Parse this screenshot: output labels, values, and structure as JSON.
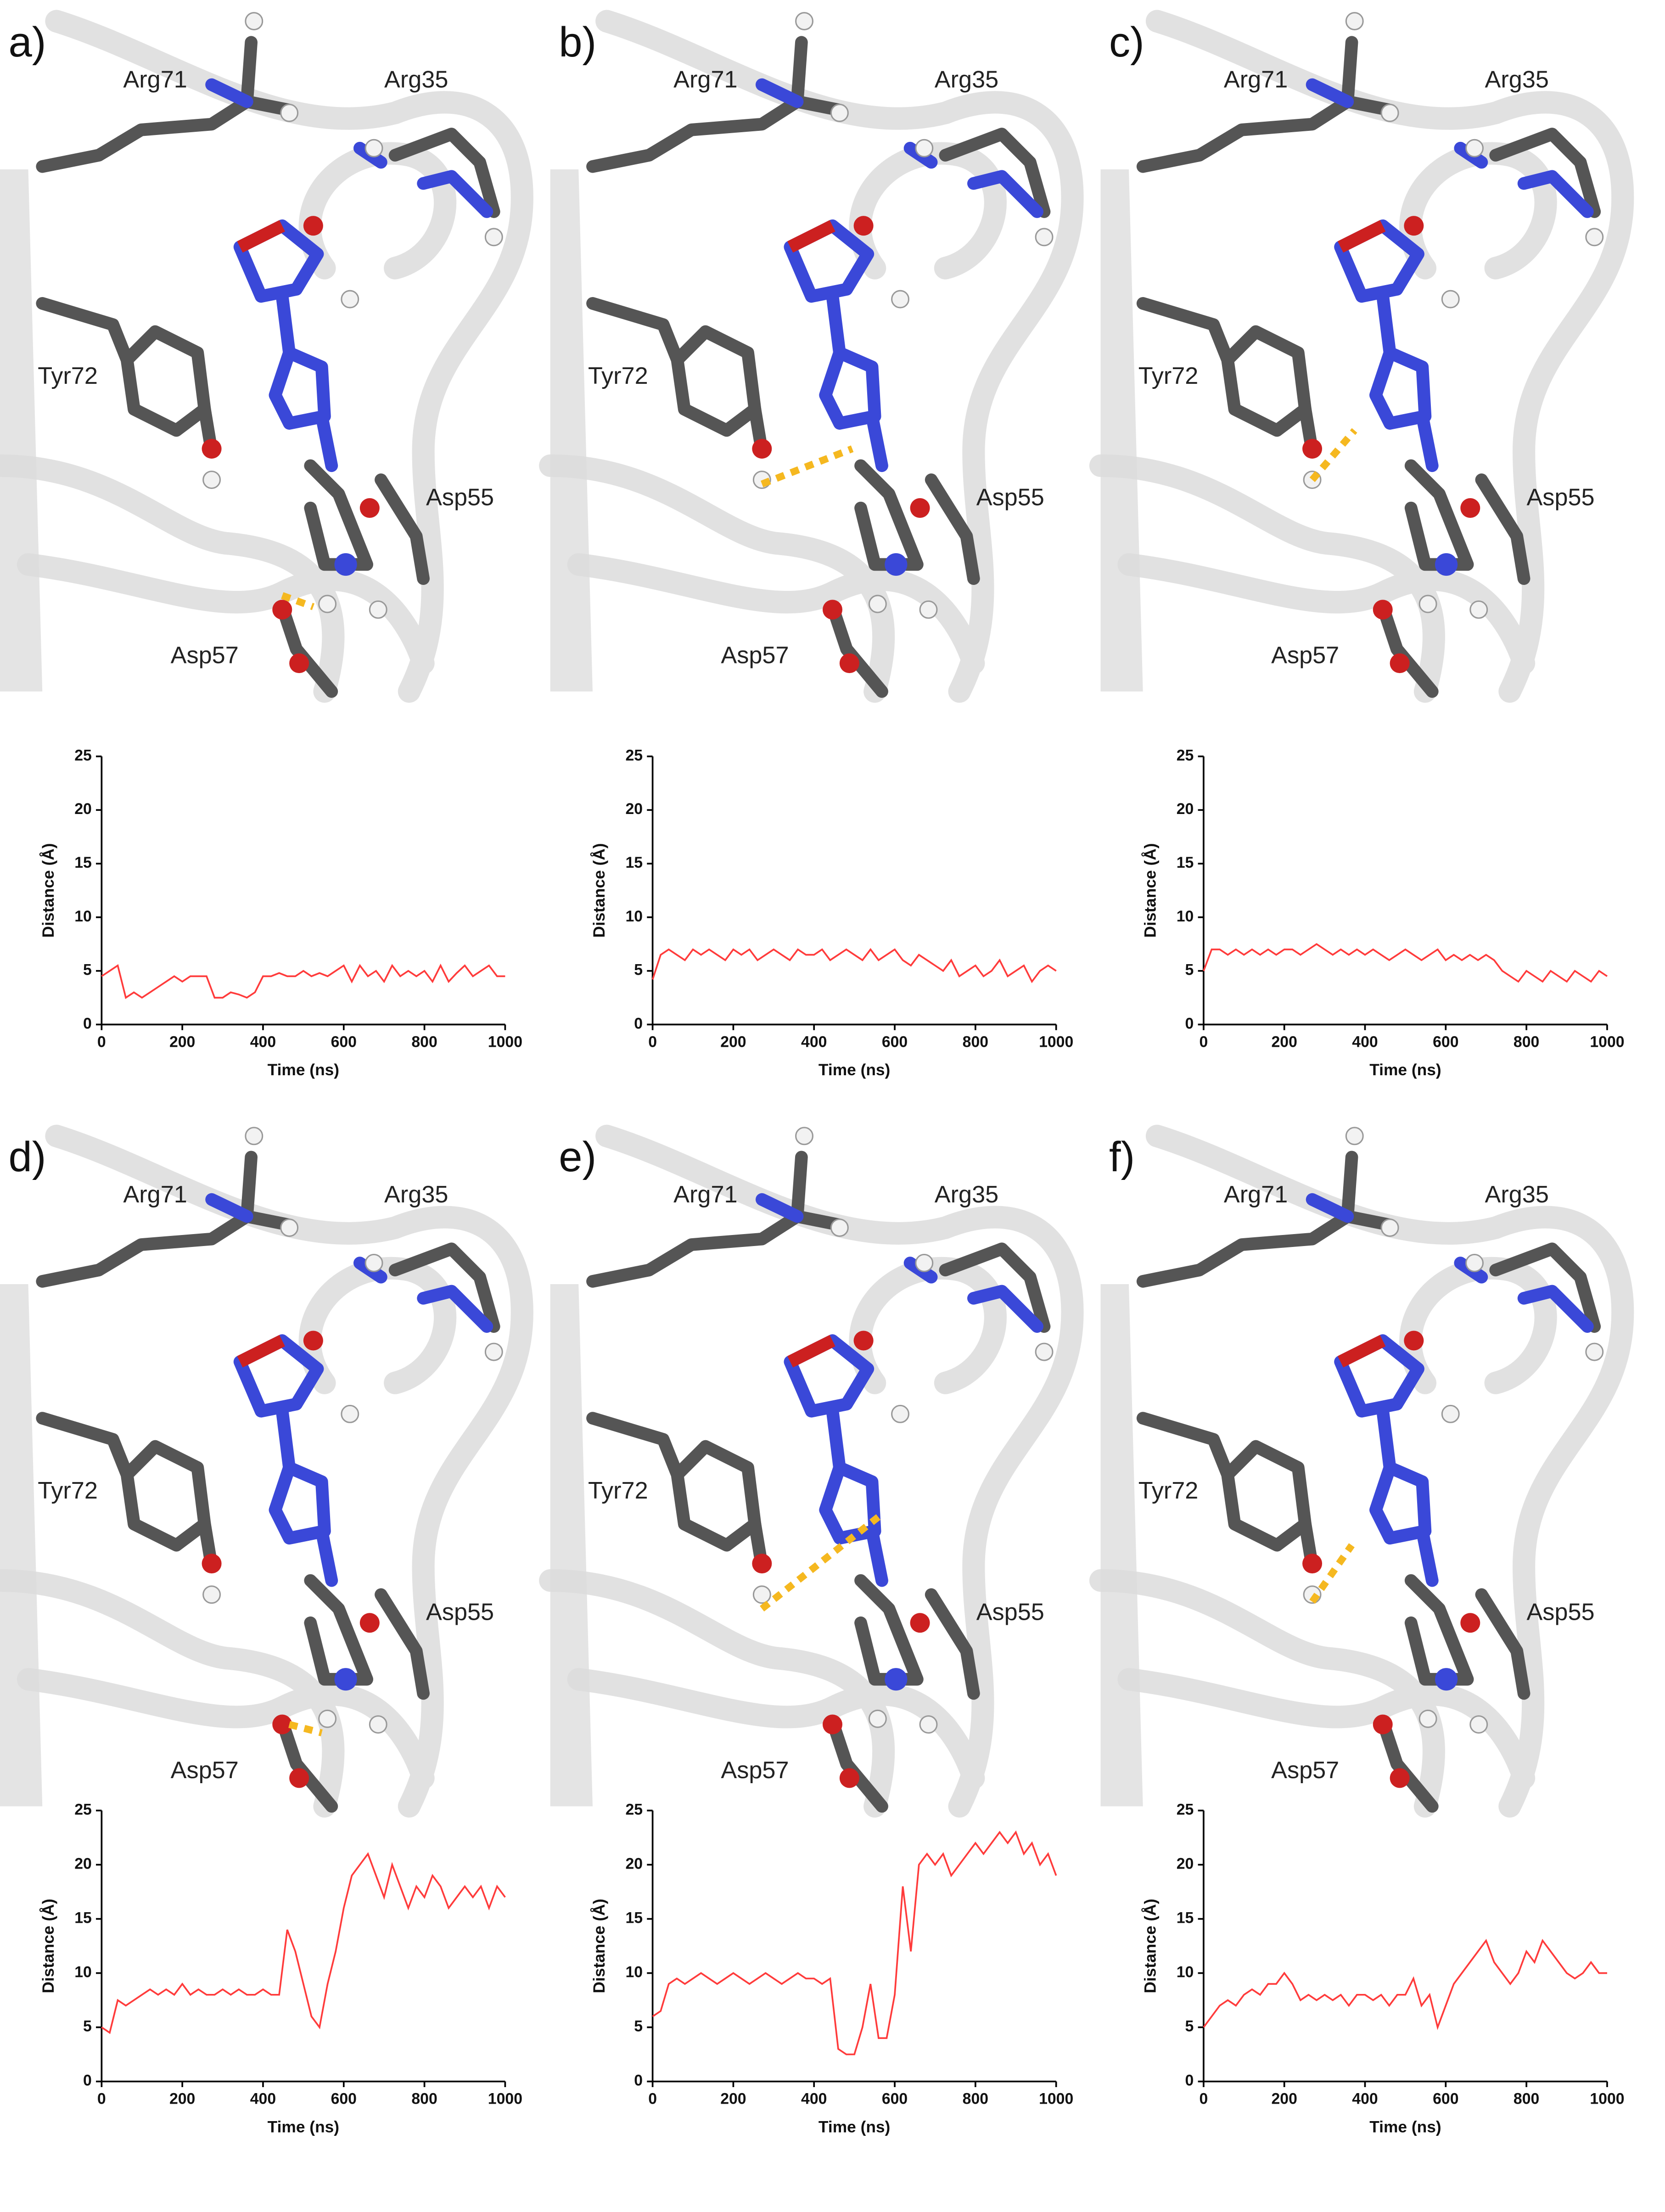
{
  "structures": [
    {
      "label": "a)",
      "residues": [
        "Arg71",
        "Arg35",
        "Tyr72",
        "Asp55",
        "Asp57"
      ]
    },
    {
      "label": "b)",
      "residues": [
        "Arg71",
        "Arg35",
        "Tyr72",
        "Asp55",
        "Asp57"
      ]
    },
    {
      "label": "c)",
      "residues": [
        "Arg71",
        "Arg35",
        "Tyr72",
        "Asp55",
        "Asp57"
      ]
    },
    {
      "label": "d)",
      "residues": [
        "Arg71",
        "Arg35",
        "Tyr72",
        "Asp55",
        "Asp57"
      ]
    },
    {
      "label": "e)",
      "residues": [
        "Arg71",
        "Arg35",
        "Tyr72",
        "Asp55",
        "Asp57"
      ]
    },
    {
      "label": "f)",
      "residues": [
        "Arg71",
        "Arg35",
        "Tyr72",
        "Asp55",
        "Asp57"
      ]
    }
  ],
  "chart_data": [
    {
      "type": "line",
      "xlabel": "Time (ns)",
      "ylabel": "Distance (Å)",
      "color": "#ff3b3b",
      "xlim": [
        0,
        1000
      ],
      "ylim": [
        0,
        25
      ],
      "xticks": [
        0,
        200,
        400,
        600,
        800,
        1000
      ],
      "yticks": [
        0,
        5,
        10,
        15,
        20,
        25
      ],
      "x": [
        0,
        20,
        40,
        60,
        80,
        100,
        120,
        140,
        160,
        180,
        200,
        220,
        240,
        260,
        280,
        300,
        320,
        340,
        360,
        380,
        400,
        420,
        440,
        460,
        480,
        500,
        520,
        540,
        560,
        580,
        600,
        620,
        640,
        660,
        680,
        700,
        720,
        740,
        760,
        780,
        800,
        820,
        840,
        860,
        880,
        900,
        920,
        940,
        960,
        980,
        1000
      ],
      "values": [
        4.5,
        5,
        5.5,
        2.5,
        3,
        2.5,
        3,
        3.5,
        4,
        4.5,
        4,
        4.5,
        4.5,
        4.5,
        2.5,
        2.5,
        3,
        2.8,
        2.5,
        3,
        4.5,
        4.5,
        4.8,
        4.5,
        4.5,
        5,
        4.5,
        4.8,
        4.5,
        5,
        5.5,
        4,
        5.5,
        4.5,
        5,
        4,
        5.5,
        4.5,
        5,
        4.5,
        5,
        4,
        5.5,
        4,
        4.8,
        5.5,
        4.5,
        5,
        5.5,
        4.5,
        4.5
      ]
    },
    {
      "type": "line",
      "xlabel": "Time (ns)",
      "ylabel": "Distance (Å)",
      "color": "#ff3b3b",
      "xlim": [
        0,
        1000
      ],
      "ylim": [
        0,
        25
      ],
      "xticks": [
        0,
        200,
        400,
        600,
        800,
        1000
      ],
      "yticks": [
        0,
        5,
        10,
        15,
        20,
        25
      ],
      "x": [
        0,
        20,
        40,
        60,
        80,
        100,
        120,
        140,
        160,
        180,
        200,
        220,
        240,
        260,
        280,
        300,
        320,
        340,
        360,
        380,
        400,
        420,
        440,
        460,
        480,
        500,
        520,
        540,
        560,
        580,
        600,
        620,
        640,
        660,
        680,
        700,
        720,
        740,
        760,
        780,
        800,
        820,
        840,
        860,
        880,
        900,
        920,
        940,
        960,
        980,
        1000
      ],
      "values": [
        4.2,
        6.5,
        7,
        6.5,
        6,
        7,
        6.5,
        7,
        6.5,
        6,
        7,
        6.5,
        7,
        6,
        6.5,
        7,
        6.5,
        6,
        7,
        6.5,
        6.5,
        7,
        6,
        6.5,
        7,
        6.5,
        6,
        7,
        6,
        6.5,
        7,
        6,
        5.5,
        6.5,
        6,
        5.5,
        5,
        6,
        4.5,
        5,
        5.5,
        4.5,
        5,
        6,
        4.5,
        5,
        5.5,
        4,
        5,
        5.5,
        5
      ]
    },
    {
      "type": "line",
      "xlabel": "Time (ns)",
      "ylabel": "Distance (Å)",
      "color": "#ff3b3b",
      "xlim": [
        0,
        1000
      ],
      "ylim": [
        0,
        25
      ],
      "xticks": [
        0,
        200,
        400,
        600,
        800,
        1000
      ],
      "yticks": [
        0,
        5,
        10,
        15,
        20,
        25
      ],
      "x": [
        0,
        20,
        40,
        60,
        80,
        100,
        120,
        140,
        160,
        180,
        200,
        220,
        240,
        260,
        280,
        300,
        320,
        340,
        360,
        380,
        400,
        420,
        440,
        460,
        480,
        500,
        520,
        540,
        560,
        580,
        600,
        620,
        640,
        660,
        680,
        700,
        720,
        740,
        760,
        780,
        800,
        820,
        840,
        860,
        880,
        900,
        920,
        940,
        960,
        980,
        1000
      ],
      "values": [
        5,
        7,
        7,
        6.5,
        7,
        6.5,
        7,
        6.5,
        7,
        6.5,
        7,
        7,
        6.5,
        7,
        7.5,
        7,
        6.5,
        7,
        6.5,
        7,
        6.5,
        7,
        6.5,
        6,
        6.5,
        7,
        6.5,
        6,
        6.5,
        7,
        6,
        6.5,
        6,
        6.5,
        6,
        6.5,
        6,
        5,
        4.5,
        4,
        5,
        4.5,
        4,
        5,
        4.5,
        4,
        5,
        4.5,
        4,
        5,
        4.5
      ]
    },
    {
      "type": "line",
      "xlabel": "Time (ns)",
      "ylabel": "Distance (Å)",
      "color": "#ff3b3b",
      "xlim": [
        0,
        1000
      ],
      "ylim": [
        0,
        25
      ],
      "xticks": [
        0,
        200,
        400,
        600,
        800,
        1000
      ],
      "yticks": [
        0,
        5,
        10,
        15,
        20,
        25
      ],
      "x": [
        0,
        20,
        40,
        60,
        80,
        100,
        120,
        140,
        160,
        180,
        200,
        220,
        240,
        260,
        280,
        300,
        320,
        340,
        360,
        380,
        400,
        420,
        440,
        460,
        480,
        500,
        520,
        540,
        560,
        580,
        600,
        620,
        640,
        660,
        680,
        700,
        720,
        740,
        760,
        780,
        800,
        820,
        840,
        860,
        880,
        900,
        920,
        940,
        960,
        980,
        1000
      ],
      "values": [
        5,
        4.5,
        7.5,
        7,
        7.5,
        8,
        8.5,
        8,
        8.5,
        8,
        9,
        8,
        8.5,
        8,
        8,
        8.5,
        8,
        8.5,
        8,
        8,
        8.5,
        8,
        8,
        14,
        12,
        9,
        6,
        5,
        9,
        12,
        16,
        19,
        20,
        21,
        19,
        17,
        20,
        18,
        16,
        18,
        17,
        19,
        18,
        16,
        17,
        18,
        17,
        18,
        16,
        18,
        17
      ]
    },
    {
      "type": "line",
      "xlabel": "Time (ns)",
      "ylabel": "Distance (Å)",
      "color": "#ff3b3b",
      "xlim": [
        0,
        1000
      ],
      "ylim": [
        0,
        25
      ],
      "xticks": [
        0,
        200,
        400,
        600,
        800,
        1000
      ],
      "yticks": [
        0,
        5,
        10,
        15,
        20,
        25
      ],
      "x": [
        0,
        20,
        40,
        60,
        80,
        100,
        120,
        140,
        160,
        180,
        200,
        220,
        240,
        260,
        280,
        300,
        320,
        340,
        360,
        380,
        400,
        420,
        440,
        460,
        480,
        500,
        520,
        540,
        560,
        580,
        600,
        620,
        640,
        660,
        680,
        700,
        720,
        740,
        760,
        780,
        800,
        820,
        840,
        860,
        880,
        900,
        920,
        940,
        960,
        980,
        1000
      ],
      "values": [
        6,
        6.5,
        9,
        9.5,
        9,
        9.5,
        10,
        9.5,
        9,
        9.5,
        10,
        9.5,
        9,
        9.5,
        10,
        9.5,
        9,
        9.5,
        10,
        9.5,
        9.5,
        9,
        9.5,
        3,
        2.5,
        2.5,
        5,
        9,
        4,
        4,
        8,
        18,
        12,
        20,
        21,
        20,
        21,
        19,
        20,
        21,
        22,
        21,
        22,
        23,
        22,
        23,
        21,
        22,
        20,
        21,
        19
      ]
    },
    {
      "type": "line",
      "xlabel": "Time (ns)",
      "ylabel": "Distance (Å)",
      "color": "#ff3b3b",
      "xlim": [
        0,
        1000
      ],
      "ylim": [
        0,
        25
      ],
      "xticks": [
        0,
        200,
        400,
        600,
        800,
        1000
      ],
      "yticks": [
        0,
        5,
        10,
        15,
        20,
        25
      ],
      "x": [
        0,
        20,
        40,
        60,
        80,
        100,
        120,
        140,
        160,
        180,
        200,
        220,
        240,
        260,
        280,
        300,
        320,
        340,
        360,
        380,
        400,
        420,
        440,
        460,
        480,
        500,
        520,
        540,
        560,
        580,
        600,
        620,
        640,
        660,
        680,
        700,
        720,
        740,
        760,
        780,
        800,
        820,
        840,
        860,
        880,
        900,
        920,
        940,
        960,
        980,
        1000
      ],
      "values": [
        5,
        6,
        7,
        7.5,
        7,
        8,
        8.5,
        8,
        9,
        9,
        10,
        9,
        7.5,
        8,
        7.5,
        8,
        7.5,
        8,
        7,
        8,
        8,
        7.5,
        8,
        7,
        8,
        8,
        9.5,
        7,
        8,
        5,
        7,
        9,
        10,
        11,
        12,
        13,
        11,
        10,
        9,
        10,
        12,
        11,
        13,
        12,
        11,
        10,
        9.5,
        10,
        11,
        10,
        10
      ]
    }
  ]
}
